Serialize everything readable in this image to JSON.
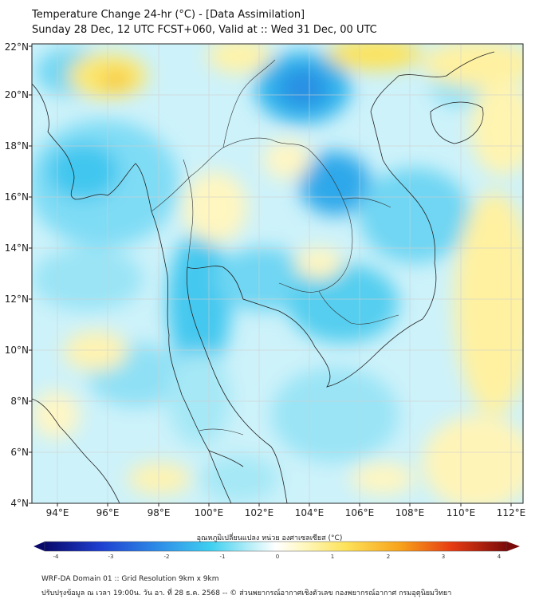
{
  "header": {
    "title": "Temperature Change 24-hr (°C) - [Data Assimilation]",
    "subtitle": "Sunday 28 Dec, 12 UTC FCST+060, Valid at :: Wed 31 Dec, 00 UTC"
  },
  "map": {
    "lat_range": [
      4,
      22
    ],
    "lon_range": [
      93,
      112.5
    ],
    "lat_ticks": [
      "4°N",
      "6°N",
      "8°N",
      "10°N",
      "12°N",
      "14°N",
      "16°N",
      "18°N",
      "20°N",
      "22°N"
    ],
    "lon_ticks": [
      "94°E",
      "96°E",
      "98°E",
      "100°E",
      "102°E",
      "104°E",
      "106°E",
      "108°E",
      "110°E",
      "112°E"
    ]
  },
  "colorbar": {
    "label": "อุณหภูมิเปลี่ยนแปลง หน่วย องศาเซลเซียส (°C)",
    "ticks": [
      "-4",
      "-3",
      "-2",
      "-1",
      "0",
      "1",
      "2",
      "3",
      "4"
    ],
    "colors": [
      "#08086b",
      "#1e3fd0",
      "#2f8fe8",
      "#3fd0f0",
      "#bff0f8",
      "#ffffff",
      "#fff7c0",
      "#fde35a",
      "#f7a21a",
      "#e63b12",
      "#7a0a0a"
    ]
  },
  "footer": {
    "line1": "WRF-DA Domain 01 :: Grid Resolution 9km x 9km",
    "line2": "ปรับปรุงข้อมูล ณ เวลา 19:00น. วัน อา. ที่ 28 ธ.ค. 2568 -- © ส่วนพยากรณ์อากาศเชิงตัวเลข กองพยากรณ์อากาศ กรมอุตุนิยมวิทยา"
  }
}
